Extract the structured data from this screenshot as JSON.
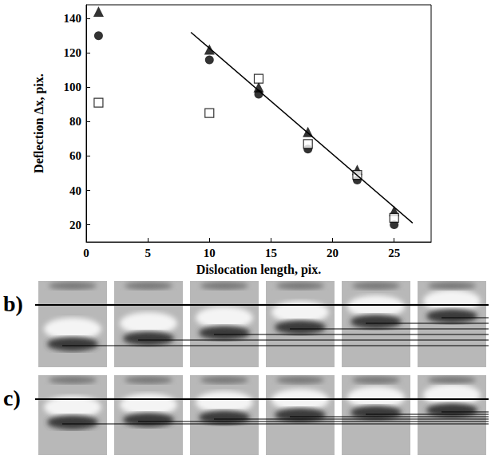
{
  "chart_data": {
    "type": "scatter",
    "xlabel": "Dislocation length, pix.",
    "ylabel": "Deflection Δx, pix.",
    "xlim": [
      0,
      28
    ],
    "xticks": [
      0,
      5,
      10,
      15,
      20,
      25
    ],
    "ylim": [
      10,
      148
    ],
    "yticks": [
      20,
      40,
      60,
      80,
      100,
      120,
      140
    ],
    "grid": false,
    "series": [
      {
        "type": "scatter",
        "marker": "triangle",
        "color": "#000000",
        "x": [
          1,
          10,
          14,
          18,
          22,
          25
        ],
        "values": [
          144,
          122,
          100,
          74,
          52,
          28
        ]
      },
      {
        "type": "scatter",
        "marker": "circle",
        "color": "#000000",
        "x": [
          1,
          10,
          14,
          18,
          22,
          25
        ],
        "values": [
          130,
          116,
          96,
          64,
          46,
          20
        ]
      },
      {
        "type": "scatter",
        "marker": "square-open",
        "color": "#000000",
        "x": [
          1,
          10,
          14,
          18,
          22,
          25
        ],
        "values": [
          91,
          85,
          105,
          67,
          49,
          24
        ]
      },
      {
        "type": "line",
        "line_style": "solid",
        "color": "#000000",
        "x": [
          8.5,
          26.5
        ],
        "values": [
          132,
          21
        ]
      }
    ]
  },
  "panels": [
    {
      "label": "b)"
    },
    {
      "label": "c)"
    }
  ]
}
